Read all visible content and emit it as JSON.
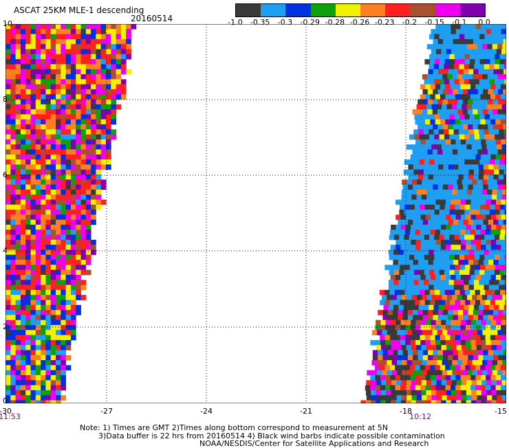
{
  "header": {
    "title": "ASCAT 25KM MLE-1 descending",
    "date": "20160514"
  },
  "colorbar": {
    "colors": [
      "#3a3a3a",
      "#1e9ff2",
      "#0030e0",
      "#0fa010",
      "#f2f200",
      "#ff8020",
      "#ff2020",
      "#a85030",
      "#f000f0",
      "#8000b0"
    ],
    "labels": [
      "-1.0",
      "-0.35",
      "-0.3",
      "-0.29",
      "-0.28",
      "-0.26",
      "-0.23",
      "-0.2",
      "-0.15",
      "-0.1",
      "0.0"
    ]
  },
  "axes": {
    "y_ticks": [
      "10",
      "8",
      "6",
      "4",
      "2",
      "0"
    ],
    "x_ticks": [
      "-30",
      "-27",
      "-24",
      "-21",
      "-18",
      "-15"
    ],
    "pass_times": [
      "11:53",
      "10:12"
    ],
    "grid": "dotted"
  },
  "notes": [
    "Note: 1) Times are GMT 2)Times along bottom correspond to measurement at 5N",
    "3)Data buffer is 22 hrs from 20160514 4) Black wind barbs indicate possible contamination",
    "NOAA/NESDIS/Center for Satellite Applications and Research"
  ]
}
